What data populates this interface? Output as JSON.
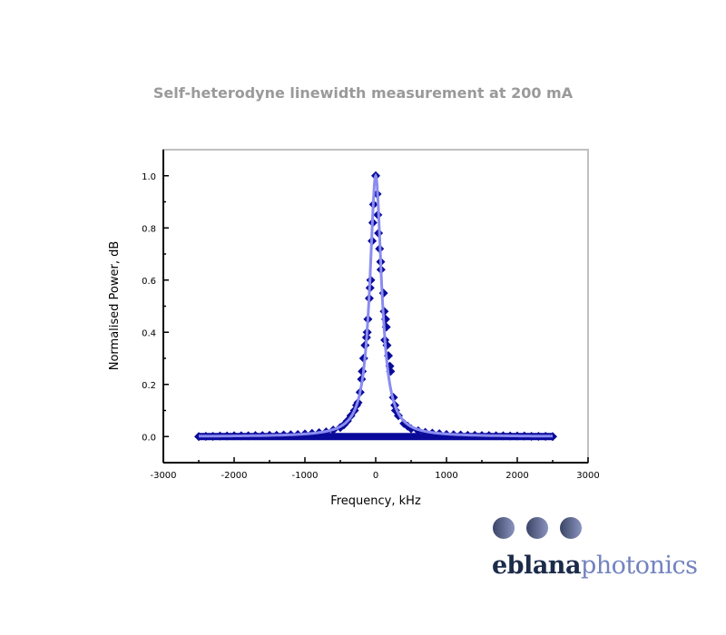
{
  "chart_data": {
    "type": "scatter",
    "title": "Self-heterodyne linewidth measurement at 200 mA",
    "xlabel": "Frequency, kHz",
    "ylabel": "Normalised Power, dB",
    "xlim": [
      -3000,
      3000
    ],
    "ylim": [
      -0.1,
      1.1
    ],
    "xticks": [
      -3000,
      -2000,
      -1000,
      0,
      1000,
      2000,
      3000
    ],
    "yticks": [
      0.0,
      0.2,
      0.4,
      0.6,
      0.8,
      1.0
    ],
    "grid": false,
    "legend": "none",
    "series": [
      {
        "kind": "scatter",
        "marker": "diamond",
        "color": "#0a0a9a",
        "points": [
          [
            -2500,
            0
          ],
          [
            -2400,
            0.001
          ],
          [
            -2300,
            0.001
          ],
          [
            -2200,
            0.002
          ],
          [
            -2100,
            0.002
          ],
          [
            -2000,
            0.003
          ],
          [
            -1900,
            0.003
          ],
          [
            -1800,
            0.003
          ],
          [
            -1700,
            0.004
          ],
          [
            -1600,
            0.004
          ],
          [
            -1500,
            0.005
          ],
          [
            -1400,
            0.005
          ],
          [
            -1300,
            0.006
          ],
          [
            -1200,
            0.007
          ],
          [
            -1100,
            0.008
          ],
          [
            -1000,
            0.01
          ],
          [
            -900,
            0.012
          ],
          [
            -800,
            0.015
          ],
          [
            -700,
            0.018
          ],
          [
            -600,
            0.025
          ],
          [
            -500,
            0.035
          ],
          [
            -450,
            0.045
          ],
          [
            -400,
            0.06
          ],
          [
            -350,
            0.08
          ],
          [
            -300,
            0.1
          ],
          [
            -270,
            0.12
          ],
          [
            -250,
            0.13
          ],
          [
            -220,
            0.17
          ],
          [
            -200,
            0.22
          ],
          [
            -190,
            0.25
          ],
          [
            -170,
            0.3
          ],
          [
            -150,
            0.35
          ],
          [
            -130,
            0.38
          ],
          [
            -120,
            0.4
          ],
          [
            -110,
            0.45
          ],
          [
            -90,
            0.53
          ],
          [
            -80,
            0.57
          ],
          [
            -70,
            0.6
          ],
          [
            -50,
            0.75
          ],
          [
            -40,
            0.82
          ],
          [
            -30,
            0.89
          ],
          [
            0,
            1.0
          ],
          [
            20,
            0.93
          ],
          [
            30,
            0.85
          ],
          [
            40,
            0.78
          ],
          [
            55,
            0.72
          ],
          [
            70,
            0.67
          ],
          [
            75,
            0.64
          ],
          [
            110,
            0.55
          ],
          [
            120,
            0.48
          ],
          [
            140,
            0.45
          ],
          [
            150,
            0.42
          ],
          [
            130,
            0.37
          ],
          [
            160,
            0.35
          ],
          [
            180,
            0.31
          ],
          [
            200,
            0.27
          ],
          [
            210,
            0.25
          ],
          [
            250,
            0.15
          ],
          [
            270,
            0.12
          ],
          [
            280,
            0.1
          ],
          [
            320,
            0.08
          ],
          [
            400,
            0.05
          ],
          [
            450,
            0.04
          ],
          [
            500,
            0.03
          ],
          [
            600,
            0.022
          ],
          [
            700,
            0.016
          ],
          [
            800,
            0.013
          ],
          [
            900,
            0.011
          ],
          [
            1000,
            0.008
          ],
          [
            1100,
            0.007
          ],
          [
            1200,
            0.006
          ],
          [
            1300,
            0.005
          ],
          [
            1400,
            0.005
          ],
          [
            1500,
            0.004
          ],
          [
            1600,
            0.004
          ],
          [
            1700,
            0.003
          ],
          [
            1800,
            0.003
          ],
          [
            1900,
            0.002
          ],
          [
            2000,
            0.002
          ],
          [
            2100,
            0.002
          ],
          [
            2200,
            0.001
          ],
          [
            2300,
            0.001
          ],
          [
            2400,
            0.001
          ],
          [
            2500,
            0
          ]
        ]
      },
      {
        "kind": "fit",
        "model": "lorentzian",
        "color": "#8a8cf0",
        "center": 0,
        "hwhm": 100,
        "amplitude": 1.0,
        "range": [
          -2500,
          2500
        ]
      }
    ]
  },
  "logo": {
    "part1": "eblana",
    "part2": "photonics"
  }
}
